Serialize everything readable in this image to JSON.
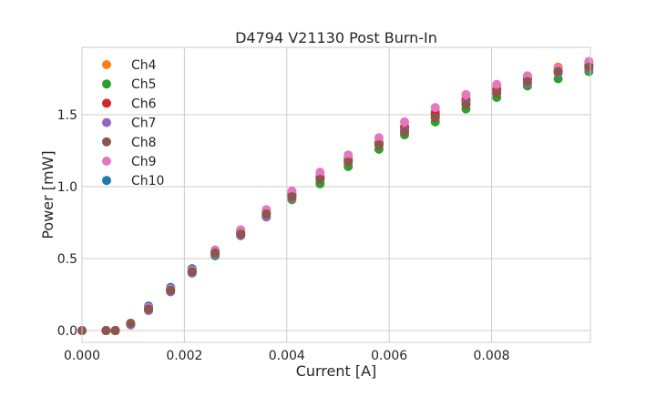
{
  "chart_data": {
    "type": "scatter",
    "title": "D4794 V21130 Post Burn-In",
    "xlabel": "Current [A]",
    "ylabel": "Power [mW]",
    "xlim": [
      0,
      0.00993
    ],
    "ylim": [
      -0.082,
      1.968
    ],
    "xticks": [
      0,
      0.002,
      0.004,
      0.006,
      0.008
    ],
    "xtick_labels": [
      "0.000",
      "0.002",
      "0.004",
      "0.006",
      "0.008"
    ],
    "yticks": [
      0,
      0.5,
      1.0,
      1.5
    ],
    "ytick_labels": [
      "0.0",
      "0.5",
      "1.0",
      "1.5"
    ],
    "grid": true,
    "legend_placement": "upper-left",
    "x": [
      0,
      0.00047,
      0.00065,
      0.00095,
      0.0013,
      0.00173,
      0.00215,
      0.0026,
      0.0031,
      0.0036,
      0.0041,
      0.00465,
      0.0052,
      0.0058,
      0.0063,
      0.0069,
      0.0075,
      0.0081,
      0.0087,
      0.0093,
      0.0099
    ],
    "series": [
      {
        "name": "Ch4",
        "color": "#ff7f0e",
        "values": [
          0,
          0,
          0,
          0.05,
          0.15,
          0.28,
          0.41,
          0.54,
          0.68,
          0.82,
          0.94,
          1.07,
          1.19,
          1.31,
          1.42,
          1.52,
          1.61,
          1.69,
          1.76,
          1.83,
          1.86
        ]
      },
      {
        "name": "Ch5",
        "color": "#2ca02c",
        "values": [
          0,
          0,
          0,
          0.04,
          0.14,
          0.27,
          0.4,
          0.52,
          0.66,
          0.79,
          0.91,
          1.02,
          1.14,
          1.26,
          1.36,
          1.45,
          1.54,
          1.62,
          1.7,
          1.75,
          1.8
        ]
      },
      {
        "name": "Ch6",
        "color": "#d62728",
        "values": [
          0,
          0,
          0,
          0.05,
          0.15,
          0.28,
          0.41,
          0.54,
          0.68,
          0.81,
          0.94,
          1.06,
          1.18,
          1.3,
          1.41,
          1.51,
          1.6,
          1.67,
          1.75,
          1.8,
          1.84
        ]
      },
      {
        "name": "Ch7",
        "color": "#9467bd",
        "values": [
          0,
          0,
          0,
          0.04,
          0.14,
          0.27,
          0.4,
          0.53,
          0.66,
          0.79,
          0.92,
          1.05,
          1.17,
          1.29,
          1.39,
          1.48,
          1.58,
          1.65,
          1.72,
          1.79,
          1.82
        ]
      },
      {
        "name": "Ch8",
        "color": "#8c564b",
        "values": [
          0,
          0,
          0,
          0.05,
          0.15,
          0.28,
          0.41,
          0.54,
          0.67,
          0.81,
          0.93,
          1.05,
          1.17,
          1.29,
          1.38,
          1.48,
          1.57,
          1.65,
          1.73,
          1.8,
          1.83
        ]
      },
      {
        "name": "Ch9",
        "color": "#e377c2",
        "values": [
          0,
          0,
          0,
          0.05,
          0.16,
          0.29,
          0.42,
          0.56,
          0.7,
          0.84,
          0.97,
          1.1,
          1.22,
          1.34,
          1.45,
          1.55,
          1.64,
          1.71,
          1.77,
          1.82,
          1.87
        ]
      },
      {
        "name": "Ch10",
        "color": "#1f77b4",
        "values": [
          0,
          0,
          0,
          0.05,
          0.17,
          0.3,
          0.43,
          0.55,
          0.69,
          0.83,
          0.95,
          1.07,
          1.2,
          1.3,
          1.41,
          1.5,
          1.6,
          1.68,
          1.75,
          1.81,
          1.85
        ]
      }
    ]
  }
}
